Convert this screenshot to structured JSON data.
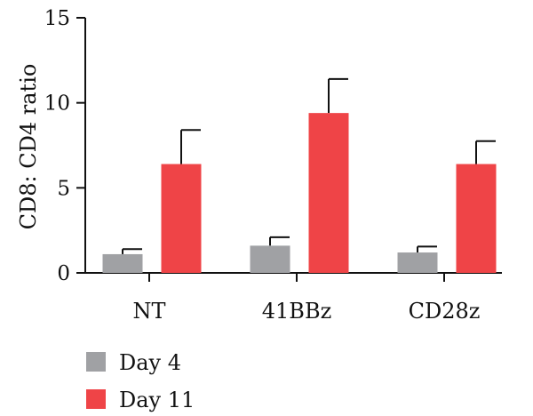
{
  "chart_data": {
    "type": "bar",
    "categories": [
      "NT",
      "41BBz",
      "CD28z"
    ],
    "series": [
      {
        "name": "Day 4",
        "color": "#a0a1a4",
        "values": [
          1.1,
          1.6,
          1.2
        ],
        "errors": [
          0.3,
          0.5,
          0.35
        ]
      },
      {
        "name": "Day 11",
        "color": "#ef4447",
        "values": [
          6.4,
          9.4,
          6.4
        ],
        "errors": [
          2.0,
          2.0,
          1.35
        ]
      }
    ],
    "title": "",
    "xlabel": "",
    "ylabel": "CD8: CD4 ratio",
    "ylim": [
      0,
      15
    ],
    "yticks": [
      0,
      5,
      10,
      15
    ],
    "grid": false,
    "legend_position": "bottom-left"
  }
}
